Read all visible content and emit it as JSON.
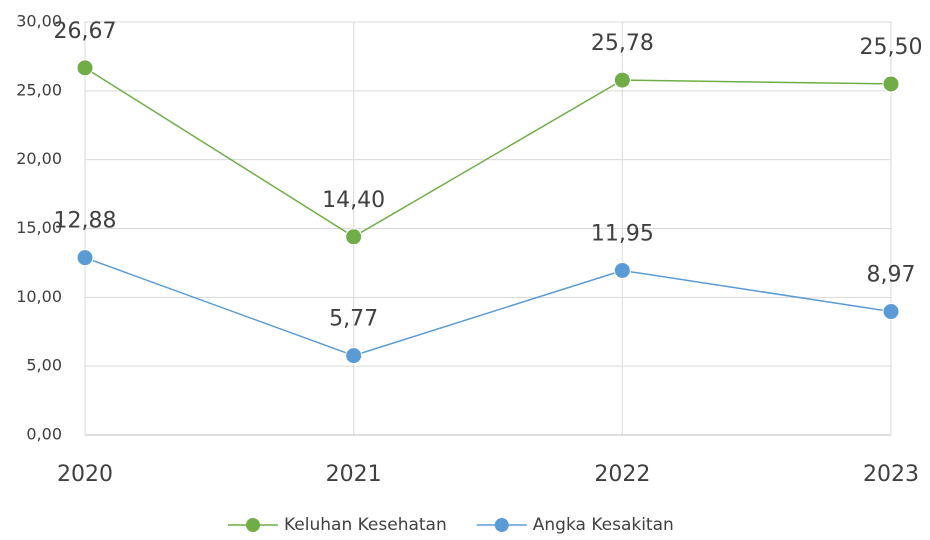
{
  "chart_data": {
    "type": "line",
    "categories": [
      "2020",
      "2021",
      "2022",
      "2023"
    ],
    "series": [
      {
        "name": "Keluhan Kesehatan",
        "color": "#70ad47",
        "values": [
          26.67,
          14.4,
          25.78,
          25.5
        ],
        "value_labels": [
          "26,67",
          "14,40",
          "25,78",
          "25,50"
        ]
      },
      {
        "name": "Angka Kesakitan",
        "color": "#5b9bd5",
        "values": [
          12.88,
          5.77,
          11.95,
          8.97
        ],
        "value_labels": [
          "12,88",
          "5,77",
          "11,95",
          "8,97"
        ]
      }
    ],
    "ylim": [
      0,
      30
    ],
    "yticks": [
      {
        "value": 0,
        "label": "0,00"
      },
      {
        "value": 5,
        "label": "5,00"
      },
      {
        "value": 10,
        "label": "10,00"
      },
      {
        "value": 15,
        "label": "15,00"
      },
      {
        "value": 20,
        "label": "20,00"
      },
      {
        "value": 25,
        "label": "25,00"
      },
      {
        "value": 30,
        "label": "30,00"
      }
    ],
    "grid": true,
    "legend": "bottom"
  }
}
